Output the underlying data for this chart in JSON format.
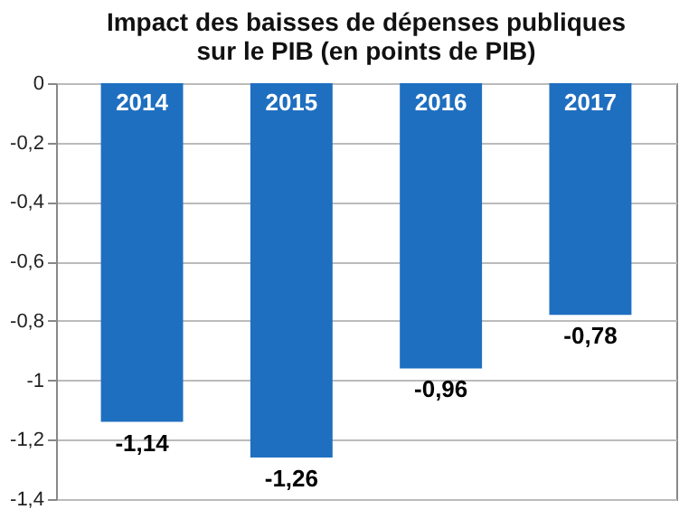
{
  "chart_data": {
    "type": "bar",
    "title": "Impact des baisses de dépenses publiques\nsur le PIB (en points de PIB)",
    "categories": [
      "2014",
      "2015",
      "2016",
      "2017"
    ],
    "values": [
      -1.14,
      -1.26,
      -0.96,
      -0.78
    ],
    "value_labels": [
      "-1,14",
      "-1,26",
      "-0,96",
      "-0,78"
    ],
    "color": "#1f6fc0",
    "ylim": [
      -1.4,
      0
    ],
    "yticks": [
      {
        "value": 0,
        "label": "0"
      },
      {
        "value": -0.2,
        "label": "-0,2"
      },
      {
        "value": -0.4,
        "label": "-0,4"
      },
      {
        "value": -0.6,
        "label": "-0,6"
      },
      {
        "value": -0.8,
        "label": "-0,8"
      },
      {
        "value": -1,
        "label": "-1"
      },
      {
        "value": -1.2,
        "label": "-1,2"
      },
      {
        "value": -1.4,
        "label": "-1,4"
      }
    ],
    "grid": "y",
    "tick_labels": "y"
  }
}
